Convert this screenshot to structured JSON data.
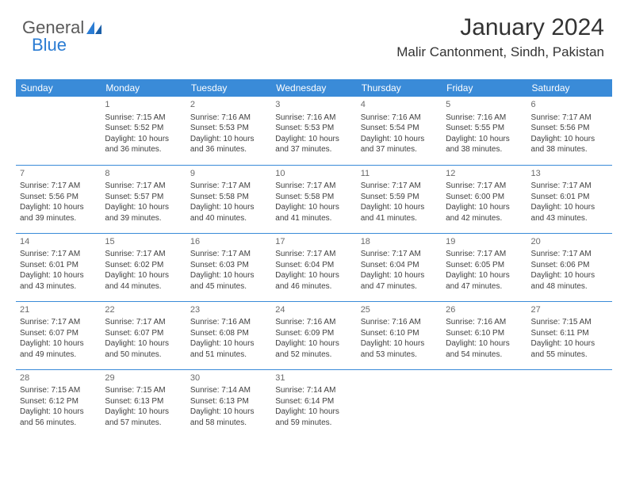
{
  "logo": {
    "text_general": "General",
    "text_blue": "Blue"
  },
  "header": {
    "title": "January 2024",
    "location": "Malir Cantonment, Sindh, Pakistan"
  },
  "colors": {
    "header_bg": "#3a8bd8",
    "header_text": "#ffffff",
    "border": "#3a8bd8",
    "body_text": "#404040",
    "day_num": "#6a6a6a",
    "logo_gray": "#5a5a5a",
    "logo_blue": "#2b7cd3",
    "background": "#ffffff"
  },
  "weekday_headers": [
    "Sunday",
    "Monday",
    "Tuesday",
    "Wednesday",
    "Thursday",
    "Friday",
    "Saturday"
  ],
  "weeks": [
    [
      null,
      {
        "day": "1",
        "sunrise": "Sunrise: 7:15 AM",
        "sunset": "Sunset: 5:52 PM",
        "daylight1": "Daylight: 10 hours",
        "daylight2": "and 36 minutes."
      },
      {
        "day": "2",
        "sunrise": "Sunrise: 7:16 AM",
        "sunset": "Sunset: 5:53 PM",
        "daylight1": "Daylight: 10 hours",
        "daylight2": "and 36 minutes."
      },
      {
        "day": "3",
        "sunrise": "Sunrise: 7:16 AM",
        "sunset": "Sunset: 5:53 PM",
        "daylight1": "Daylight: 10 hours",
        "daylight2": "and 37 minutes."
      },
      {
        "day": "4",
        "sunrise": "Sunrise: 7:16 AM",
        "sunset": "Sunset: 5:54 PM",
        "daylight1": "Daylight: 10 hours",
        "daylight2": "and 37 minutes."
      },
      {
        "day": "5",
        "sunrise": "Sunrise: 7:16 AM",
        "sunset": "Sunset: 5:55 PM",
        "daylight1": "Daylight: 10 hours",
        "daylight2": "and 38 minutes."
      },
      {
        "day": "6",
        "sunrise": "Sunrise: 7:17 AM",
        "sunset": "Sunset: 5:56 PM",
        "daylight1": "Daylight: 10 hours",
        "daylight2": "and 38 minutes."
      }
    ],
    [
      {
        "day": "7",
        "sunrise": "Sunrise: 7:17 AM",
        "sunset": "Sunset: 5:56 PM",
        "daylight1": "Daylight: 10 hours",
        "daylight2": "and 39 minutes."
      },
      {
        "day": "8",
        "sunrise": "Sunrise: 7:17 AM",
        "sunset": "Sunset: 5:57 PM",
        "daylight1": "Daylight: 10 hours",
        "daylight2": "and 39 minutes."
      },
      {
        "day": "9",
        "sunrise": "Sunrise: 7:17 AM",
        "sunset": "Sunset: 5:58 PM",
        "daylight1": "Daylight: 10 hours",
        "daylight2": "and 40 minutes."
      },
      {
        "day": "10",
        "sunrise": "Sunrise: 7:17 AM",
        "sunset": "Sunset: 5:58 PM",
        "daylight1": "Daylight: 10 hours",
        "daylight2": "and 41 minutes."
      },
      {
        "day": "11",
        "sunrise": "Sunrise: 7:17 AM",
        "sunset": "Sunset: 5:59 PM",
        "daylight1": "Daylight: 10 hours",
        "daylight2": "and 41 minutes."
      },
      {
        "day": "12",
        "sunrise": "Sunrise: 7:17 AM",
        "sunset": "Sunset: 6:00 PM",
        "daylight1": "Daylight: 10 hours",
        "daylight2": "and 42 minutes."
      },
      {
        "day": "13",
        "sunrise": "Sunrise: 7:17 AM",
        "sunset": "Sunset: 6:01 PM",
        "daylight1": "Daylight: 10 hours",
        "daylight2": "and 43 minutes."
      }
    ],
    [
      {
        "day": "14",
        "sunrise": "Sunrise: 7:17 AM",
        "sunset": "Sunset: 6:01 PM",
        "daylight1": "Daylight: 10 hours",
        "daylight2": "and 43 minutes."
      },
      {
        "day": "15",
        "sunrise": "Sunrise: 7:17 AM",
        "sunset": "Sunset: 6:02 PM",
        "daylight1": "Daylight: 10 hours",
        "daylight2": "and 44 minutes."
      },
      {
        "day": "16",
        "sunrise": "Sunrise: 7:17 AM",
        "sunset": "Sunset: 6:03 PM",
        "daylight1": "Daylight: 10 hours",
        "daylight2": "and 45 minutes."
      },
      {
        "day": "17",
        "sunrise": "Sunrise: 7:17 AM",
        "sunset": "Sunset: 6:04 PM",
        "daylight1": "Daylight: 10 hours",
        "daylight2": "and 46 minutes."
      },
      {
        "day": "18",
        "sunrise": "Sunrise: 7:17 AM",
        "sunset": "Sunset: 6:04 PM",
        "daylight1": "Daylight: 10 hours",
        "daylight2": "and 47 minutes."
      },
      {
        "day": "19",
        "sunrise": "Sunrise: 7:17 AM",
        "sunset": "Sunset: 6:05 PM",
        "daylight1": "Daylight: 10 hours",
        "daylight2": "and 47 minutes."
      },
      {
        "day": "20",
        "sunrise": "Sunrise: 7:17 AM",
        "sunset": "Sunset: 6:06 PM",
        "daylight1": "Daylight: 10 hours",
        "daylight2": "and 48 minutes."
      }
    ],
    [
      {
        "day": "21",
        "sunrise": "Sunrise: 7:17 AM",
        "sunset": "Sunset: 6:07 PM",
        "daylight1": "Daylight: 10 hours",
        "daylight2": "and 49 minutes."
      },
      {
        "day": "22",
        "sunrise": "Sunrise: 7:17 AM",
        "sunset": "Sunset: 6:07 PM",
        "daylight1": "Daylight: 10 hours",
        "daylight2": "and 50 minutes."
      },
      {
        "day": "23",
        "sunrise": "Sunrise: 7:16 AM",
        "sunset": "Sunset: 6:08 PM",
        "daylight1": "Daylight: 10 hours",
        "daylight2": "and 51 minutes."
      },
      {
        "day": "24",
        "sunrise": "Sunrise: 7:16 AM",
        "sunset": "Sunset: 6:09 PM",
        "daylight1": "Daylight: 10 hours",
        "daylight2": "and 52 minutes."
      },
      {
        "day": "25",
        "sunrise": "Sunrise: 7:16 AM",
        "sunset": "Sunset: 6:10 PM",
        "daylight1": "Daylight: 10 hours",
        "daylight2": "and 53 minutes."
      },
      {
        "day": "26",
        "sunrise": "Sunrise: 7:16 AM",
        "sunset": "Sunset: 6:10 PM",
        "daylight1": "Daylight: 10 hours",
        "daylight2": "and 54 minutes."
      },
      {
        "day": "27",
        "sunrise": "Sunrise: 7:15 AM",
        "sunset": "Sunset: 6:11 PM",
        "daylight1": "Daylight: 10 hours",
        "daylight2": "and 55 minutes."
      }
    ],
    [
      {
        "day": "28",
        "sunrise": "Sunrise: 7:15 AM",
        "sunset": "Sunset: 6:12 PM",
        "daylight1": "Daylight: 10 hours",
        "daylight2": "and 56 minutes."
      },
      {
        "day": "29",
        "sunrise": "Sunrise: 7:15 AM",
        "sunset": "Sunset: 6:13 PM",
        "daylight1": "Daylight: 10 hours",
        "daylight2": "and 57 minutes."
      },
      {
        "day": "30",
        "sunrise": "Sunrise: 7:14 AM",
        "sunset": "Sunset: 6:13 PM",
        "daylight1": "Daylight: 10 hours",
        "daylight2": "and 58 minutes."
      },
      {
        "day": "31",
        "sunrise": "Sunrise: 7:14 AM",
        "sunset": "Sunset: 6:14 PM",
        "daylight1": "Daylight: 10 hours",
        "daylight2": "and 59 minutes."
      },
      null,
      null,
      null
    ]
  ]
}
